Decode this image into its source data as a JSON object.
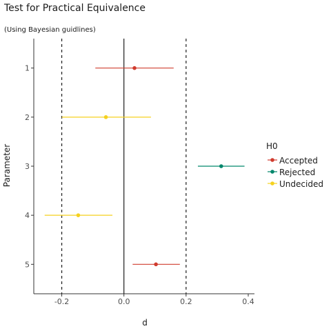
{
  "chart_data": {
    "type": "scatter",
    "title": "Test for Practical Equivalence",
    "subtitle": "(Using Bayesian guidlines)",
    "xlabel": "d",
    "ylabel": "Parameter",
    "xlim": [
      -0.29,
      0.42
    ],
    "ylim": [
      0.4,
      5.6
    ],
    "x_ticks": [
      -0.2,
      0.0,
      0.2,
      0.4
    ],
    "x_tick_labels": [
      "-0.2",
      "0.0",
      "0.2",
      "0.4"
    ],
    "y_categories": [
      "1",
      "2",
      "3",
      "4",
      "5"
    ],
    "rope": [
      -0.2,
      0.2
    ],
    "zero_line": 0.0,
    "grid": false,
    "legend": {
      "title": "H0",
      "position": "right",
      "items": [
        {
          "label": "Accepted",
          "color": "#d03b2e"
        },
        {
          "label": "Rejected",
          "color": "#00866b"
        },
        {
          "label": "Undecided",
          "color": "#f5d11e"
        }
      ]
    },
    "points": [
      {
        "parameter": "1",
        "estimate": 0.034,
        "low": -0.092,
        "high": 0.16,
        "h0": "Accepted"
      },
      {
        "parameter": "2",
        "estimate": -0.058,
        "low": -0.2,
        "high": 0.087,
        "h0": "Undecided"
      },
      {
        "parameter": "3",
        "estimate": 0.313,
        "low": 0.238,
        "high": 0.388,
        "h0": "Rejected"
      },
      {
        "parameter": "4",
        "estimate": -0.147,
        "low": -0.255,
        "high": -0.037,
        "h0": "Undecided"
      },
      {
        "parameter": "5",
        "estimate": 0.103,
        "low": 0.028,
        "high": 0.18,
        "h0": "Accepted"
      }
    ]
  }
}
